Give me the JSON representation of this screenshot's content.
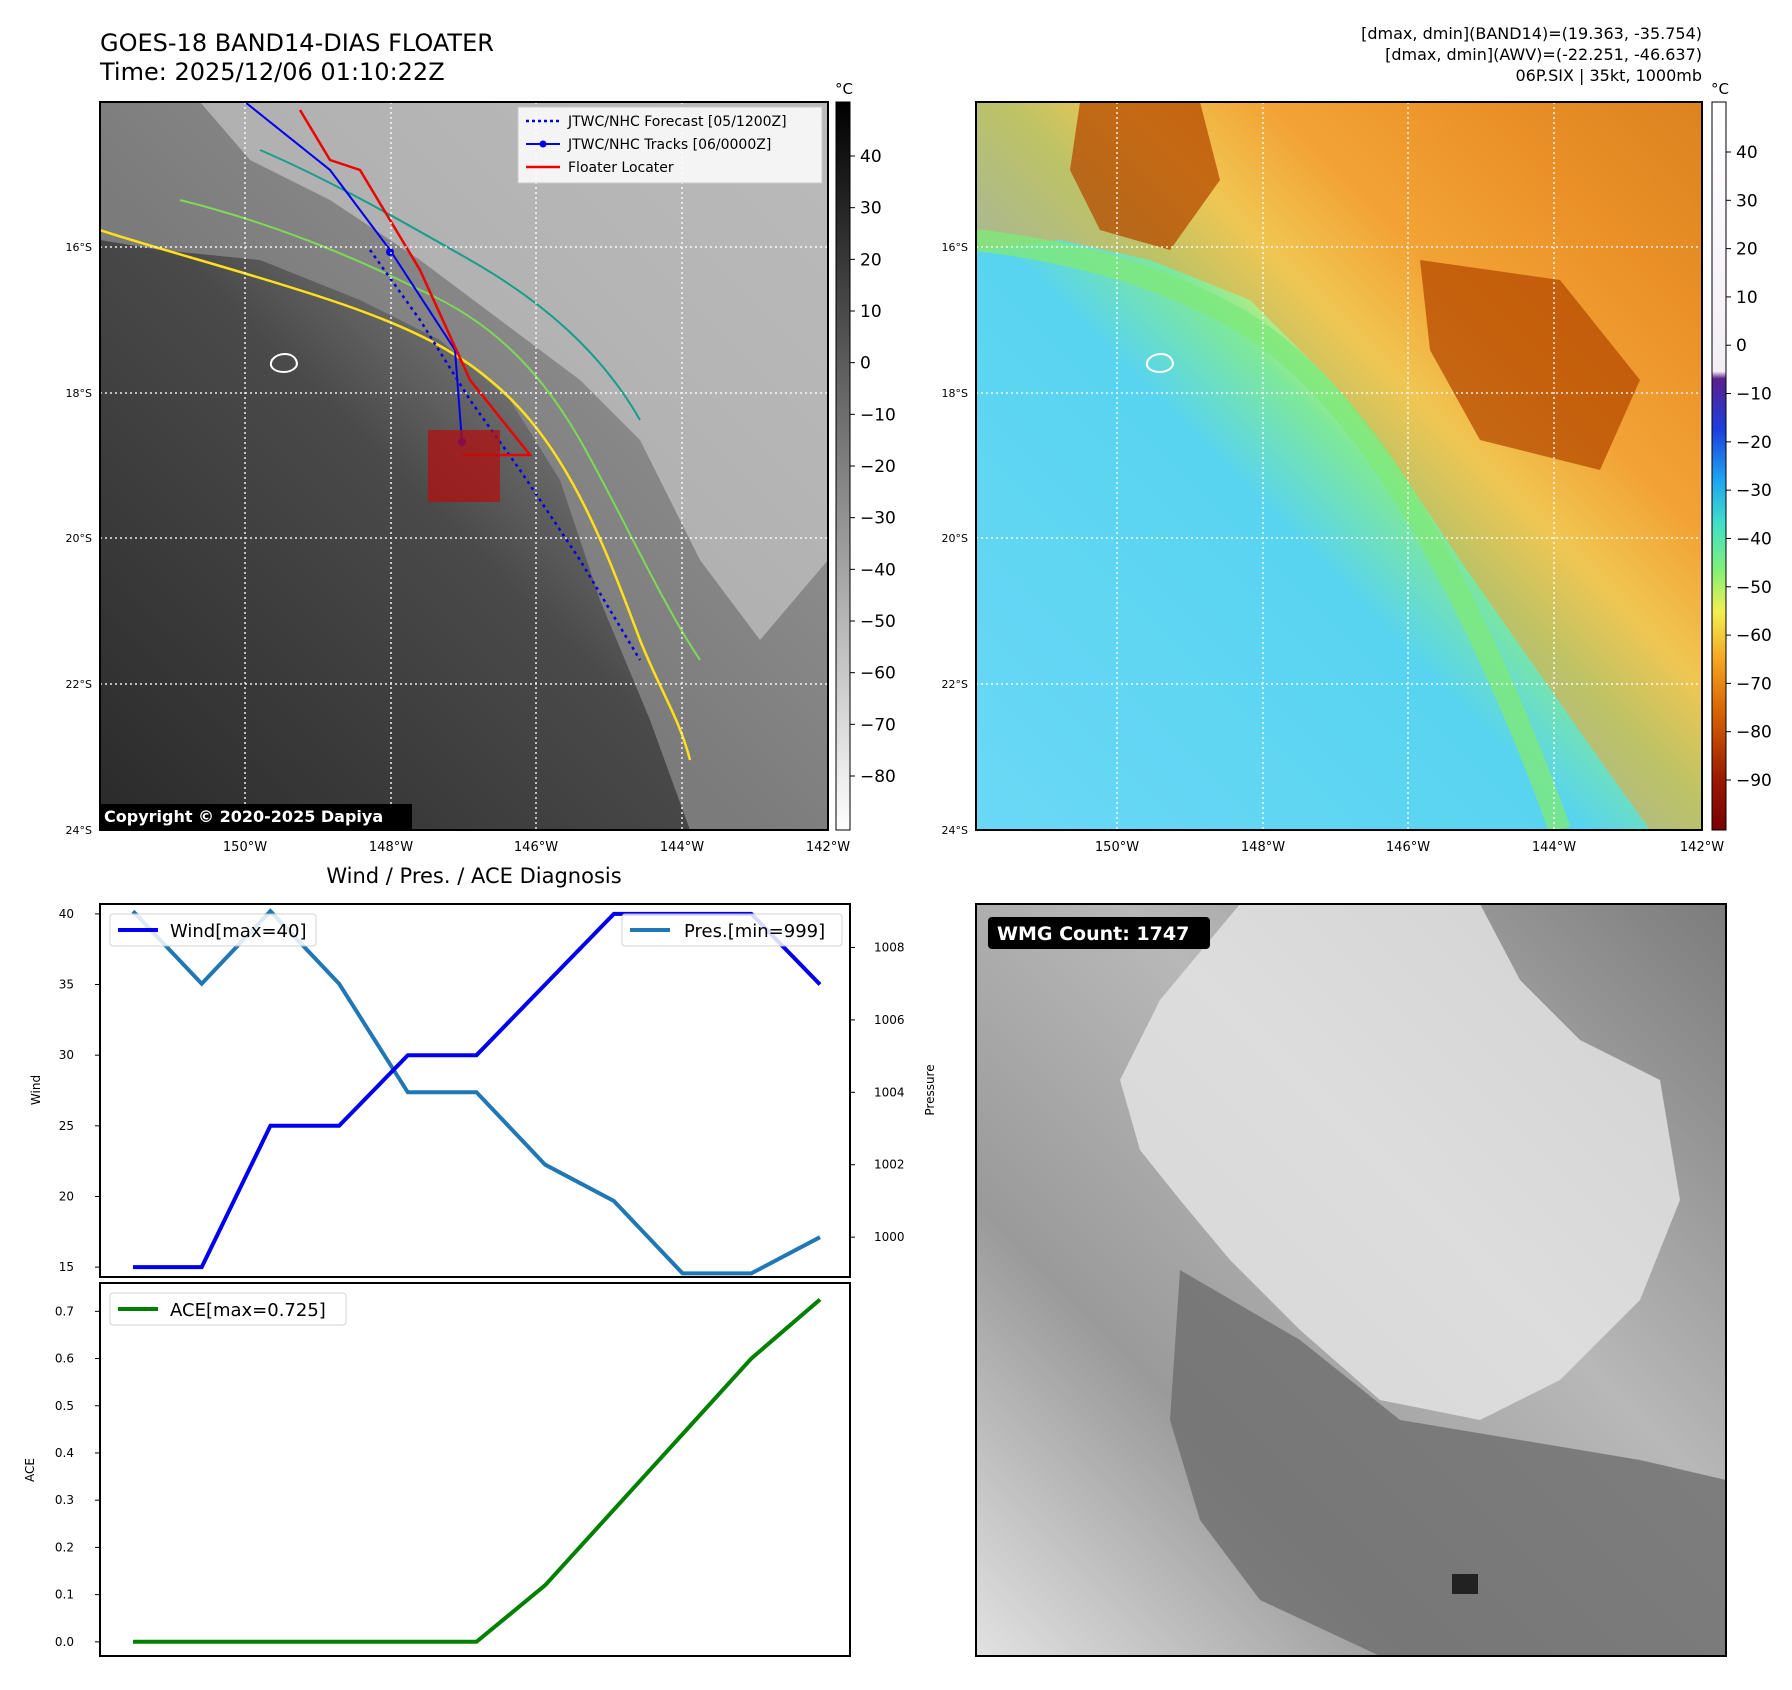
{
  "header": {
    "title": "GOES-18 BAND14-DIAS FLOATER",
    "time": "Time: 2025/12/06 01:10:22Z",
    "info_lines": [
      "[dmax, dmin](BAND14)=(19.363, -35.754)",
      "[dmax, dmin](AWV)=(-22.251, -46.637)",
      "06P.SIX | 35kt, 1000mb"
    ]
  },
  "map_axes": {
    "lon_labels": [
      "150°W",
      "148°W",
      "146°W",
      "144°W",
      "142°W"
    ],
    "lat_labels": [
      "16°S",
      "18°S",
      "20°S",
      "22°S",
      "24°S"
    ]
  },
  "map_left": {
    "legend": [
      "JTWC/NHC Forecast [05/1200Z]",
      "JTWC/NHC Tracks [06/0000Z]",
      "Floater Locater"
    ],
    "copyright": "Copyright © 2020-2025 Dapiya",
    "colorbar_unit": "°C",
    "colorbar_ticks": [
      "40",
      "30",
      "20",
      "10",
      "0",
      "−10",
      "−20",
      "−30",
      "−40",
      "−50",
      "−60",
      "−70",
      "−80"
    ],
    "colors": {
      "forecast": "#0000dd",
      "track": "#0000ee",
      "locater": "#ee0000"
    }
  },
  "map_right": {
    "colorbar_unit": "°C",
    "colorbar_ticks": [
      "40",
      "30",
      "20",
      "10",
      "0",
      "−10",
      "−20",
      "−30",
      "−40",
      "−50",
      "−60",
      "−70",
      "−80",
      "−90"
    ]
  },
  "panel_wmg": {
    "badge": "WMG Count: 1747"
  },
  "chart_data": [
    {
      "type": "line",
      "title": "Wind / Pres. / ACE Diagnosis",
      "ylabel": "Wind",
      "ylabel_right": "Pressure",
      "x": [
        0,
        1,
        2,
        3,
        4,
        5,
        6,
        7,
        8,
        9,
        10
      ],
      "ylim": [
        14.3,
        40.7
      ],
      "ylim_right": [
        998.9,
        1009.2
      ],
      "yticks": [
        "15",
        "20",
        "25",
        "30",
        "35",
        "40"
      ],
      "yticks_right": [
        "1000",
        "1002",
        "1004",
        "1006",
        "1008"
      ],
      "series": [
        {
          "name": "Wind[max=40]",
          "axis": "left",
          "color": "#0000ee",
          "values": [
            15,
            15,
            25,
            25,
            30,
            30,
            35,
            40,
            40,
            40,
            35
          ]
        },
        {
          "name": "Pres.[min=999]",
          "axis": "right",
          "color": "#1f77b4",
          "values": [
            1009,
            1007,
            1009,
            1007,
            1004,
            1004,
            1002,
            1001,
            999,
            999,
            1000
          ]
        }
      ]
    },
    {
      "type": "line",
      "ylabel": "ACE",
      "x": [
        0,
        1,
        2,
        3,
        4,
        5,
        6,
        7,
        8,
        9,
        10
      ],
      "ylim": [
        -0.03,
        0.76
      ],
      "yticks": [
        "0.0",
        "0.1",
        "0.2",
        "0.3",
        "0.4",
        "0.5",
        "0.6",
        "0.7"
      ],
      "series": [
        {
          "name": "ACE[max=0.725]",
          "color": "#008000",
          "values": [
            0,
            0,
            0,
            0,
            0,
            0,
            0.12,
            0.28,
            0.44,
            0.6,
            0.725
          ]
        }
      ]
    }
  ]
}
